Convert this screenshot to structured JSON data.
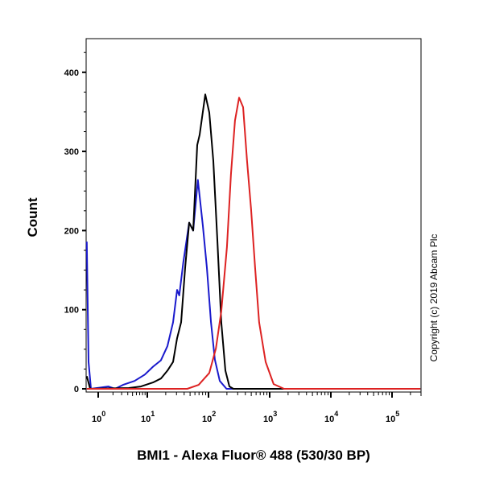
{
  "chart_data": {
    "type": "line",
    "title": "",
    "xlabel": "BMI1 - Alexa Fluor® 488 (530/30 BP)",
    "ylabel": "Count",
    "x_scale": "biexponential (log above 10^0)",
    "xlim": [
      0,
      290000
    ],
    "ylim": [
      0,
      440
    ],
    "y_ticks": [
      "0",
      "100",
      "200",
      "300",
      "400"
    ],
    "y_tick_values": [
      0,
      100,
      200,
      300,
      400
    ],
    "x_ticks": [
      {
        "base": "10",
        "exp": "0",
        "value": 1
      },
      {
        "base": "10",
        "exp": "1",
        "value": 10
      },
      {
        "base": "10",
        "exp": "2",
        "value": 100
      },
      {
        "base": "10",
        "exp": "3",
        "value": 1000
      },
      {
        "base": "10",
        "exp": "4",
        "value": 10000
      },
      {
        "base": "10",
        "exp": "5",
        "value": 100000
      }
    ],
    "grid": false,
    "legend": "none",
    "series": [
      {
        "color": "#1a1acc",
        "points": [
          [
            0.05,
            186
          ],
          [
            0.2,
            34
          ],
          [
            0.4,
            0
          ],
          [
            1.6,
            3
          ],
          [
            2.2,
            0
          ],
          [
            3.2,
            5
          ],
          [
            5.5,
            10
          ],
          [
            8.9,
            18
          ],
          [
            12.4,
            28
          ],
          [
            16.7,
            36
          ],
          [
            21.3,
            54
          ],
          [
            26.4,
            84
          ],
          [
            30.7,
            125
          ],
          [
            33.3,
            118
          ],
          [
            38.6,
            159
          ],
          [
            48.3,
            210
          ],
          [
            56.2,
            200
          ],
          [
            67,
            264
          ],
          [
            81,
            206
          ],
          [
            94,
            153
          ],
          [
            110,
            84
          ],
          [
            127,
            37
          ],
          [
            153,
            10
          ],
          [
            197,
            0
          ],
          [
            290000,
            0
          ]
        ]
      },
      {
        "color": "#000000",
        "points": [
          [
            0.05,
            16
          ],
          [
            0.33,
            0
          ],
          [
            4.2,
            1
          ],
          [
            7.4,
            3
          ],
          [
            12.4,
            8
          ],
          [
            16.7,
            13
          ],
          [
            21.3,
            23
          ],
          [
            26.4,
            34
          ],
          [
            30.7,
            64
          ],
          [
            35.7,
            84
          ],
          [
            41.5,
            153
          ],
          [
            48.3,
            210
          ],
          [
            56.2,
            200
          ],
          [
            65.4,
            308
          ],
          [
            71.6,
            321
          ],
          [
            88.6,
            372
          ],
          [
            103,
            349
          ],
          [
            120,
            288
          ],
          [
            140,
            186
          ],
          [
            162,
            84
          ],
          [
            189,
            23
          ],
          [
            220,
            3
          ],
          [
            256,
            0
          ],
          [
            290000,
            0
          ]
        ]
      },
      {
        "color": "#dd2222",
        "points": [
          [
            0.05,
            0
          ],
          [
            45,
            0
          ],
          [
            69,
            5
          ],
          [
            103,
            20
          ],
          [
            132,
            51
          ],
          [
            162,
            98
          ],
          [
            200,
            179
          ],
          [
            233,
            271
          ],
          [
            271,
            339
          ],
          [
            316,
            368
          ],
          [
            368,
            356
          ],
          [
            427,
            288
          ],
          [
            497,
            227
          ],
          [
            578,
            153
          ],
          [
            673,
            84
          ],
          [
            860,
            34
          ],
          [
            1160,
            6
          ],
          [
            1720,
            0
          ],
          [
            290000,
            0
          ]
        ]
      }
    ]
  },
  "copyright": "Copyright (c) 2019 Abcam Plc"
}
